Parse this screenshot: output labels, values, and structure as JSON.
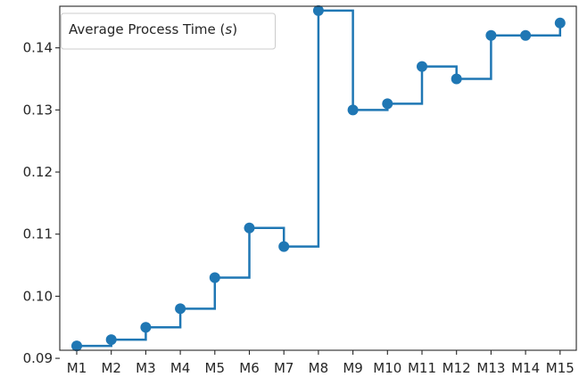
{
  "chart_data": {
    "type": "line",
    "step": "post",
    "categories": [
      "M1",
      "M2",
      "M3",
      "M4",
      "M5",
      "M6",
      "M7",
      "M8",
      "M9",
      "M10",
      "M11",
      "M12",
      "M13",
      "M14",
      "M15"
    ],
    "series": [
      {
        "name": "Average Process Time (s)",
        "values": [
          0.092,
          0.093,
          0.095,
          0.098,
          0.103,
          0.111,
          0.108,
          0.146,
          0.13,
          0.131,
          0.137,
          0.135,
          0.142,
          0.142,
          0.144
        ],
        "color": "#1f77b4"
      }
    ],
    "legend": {
      "label_prefix": "Average Process Time (",
      "label_var": "s",
      "label_suffix": ")",
      "position": "upper-left"
    },
    "yticks": [
      "0.09",
      "0.10",
      "0.11",
      "0.12",
      "0.13",
      "0.14"
    ],
    "ylim": [
      0.0913,
      0.1467
    ],
    "grid": false
  }
}
